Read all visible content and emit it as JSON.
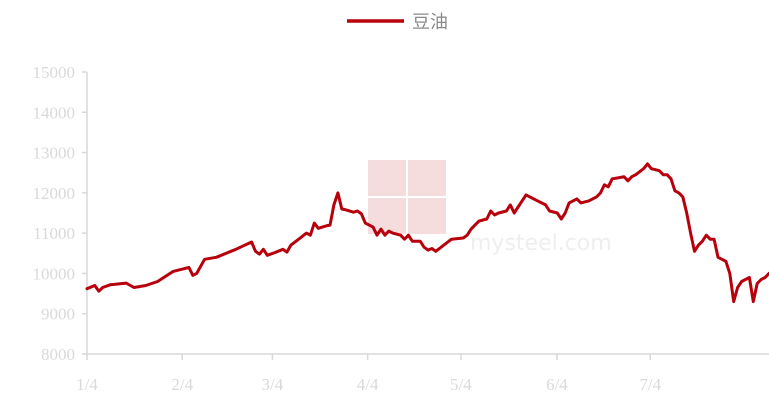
{
  "chart_data": {
    "type": "line",
    "legend_position": "top-center",
    "grid": false,
    "series": [
      {
        "name": "豆油",
        "color": "#b8000c",
        "points": [
          [
            0,
            9620
          ],
          [
            2,
            9700
          ],
          [
            3,
            9560
          ],
          [
            4,
            9650
          ],
          [
            6,
            9720
          ],
          [
            10,
            9760
          ],
          [
            12,
            9650
          ],
          [
            15,
            9700
          ],
          [
            18,
            9800
          ],
          [
            22,
            10050
          ],
          [
            26,
            10150
          ],
          [
            27,
            9950
          ],
          [
            28,
            10000
          ],
          [
            30,
            10350
          ],
          [
            33,
            10400
          ],
          [
            38,
            10600
          ],
          [
            42,
            10780
          ],
          [
            43,
            10550
          ],
          [
            44,
            10480
          ],
          [
            45,
            10600
          ],
          [
            46,
            10450
          ],
          [
            48,
            10520
          ],
          [
            50,
            10600
          ],
          [
            51,
            10530
          ],
          [
            52,
            10700
          ],
          [
            54,
            10850
          ],
          [
            56,
            11000
          ],
          [
            57,
            10950
          ],
          [
            58,
            11250
          ],
          [
            59,
            11120
          ],
          [
            61,
            11180
          ],
          [
            62,
            11200
          ],
          [
            63,
            11700
          ],
          [
            64,
            12000
          ],
          [
            65,
            11600
          ],
          [
            66,
            11580
          ],
          [
            68,
            11520
          ],
          [
            69,
            11550
          ],
          [
            70,
            11480
          ],
          [
            71,
            11250
          ],
          [
            73,
            11150
          ],
          [
            74,
            10950
          ],
          [
            75,
            11100
          ],
          [
            76,
            10950
          ],
          [
            77,
            11050
          ],
          [
            78,
            11000
          ],
          [
            80,
            10950
          ],
          [
            81,
            10850
          ],
          [
            82,
            10950
          ],
          [
            83,
            10800
          ],
          [
            85,
            10800
          ],
          [
            86,
            10650
          ],
          [
            87,
            10580
          ],
          [
            88,
            10620
          ],
          [
            89,
            10550
          ],
          [
            91,
            10700
          ],
          [
            93,
            10850
          ],
          [
            96,
            10880
          ],
          [
            97,
            10950
          ],
          [
            98,
            11100
          ],
          [
            99,
            11200
          ],
          [
            100,
            11300
          ],
          [
            102,
            11350
          ],
          [
            103,
            11550
          ],
          [
            104,
            11450
          ],
          [
            105,
            11500
          ],
          [
            107,
            11550
          ],
          [
            108,
            11700
          ],
          [
            109,
            11500
          ],
          [
            110,
            11650
          ],
          [
            111,
            11800
          ],
          [
            112,
            11950
          ],
          [
            115,
            11800
          ],
          [
            117,
            11700
          ],
          [
            118,
            11550
          ],
          [
            120,
            11500
          ],
          [
            121,
            11350
          ],
          [
            122,
            11500
          ],
          [
            123,
            11750
          ],
          [
            125,
            11850
          ],
          [
            126,
            11750
          ],
          [
            128,
            11800
          ],
          [
            130,
            11900
          ],
          [
            131,
            12000
          ],
          [
            132,
            12200
          ],
          [
            133,
            12150
          ],
          [
            134,
            12350
          ],
          [
            136,
            12380
          ],
          [
            137,
            12400
          ],
          [
            138,
            12300
          ],
          [
            139,
            12400
          ],
          [
            140,
            12450
          ],
          [
            142,
            12600
          ],
          [
            143,
            12720
          ],
          [
            144,
            12600
          ],
          [
            146,
            12550
          ],
          [
            147,
            12450
          ],
          [
            148,
            12450
          ],
          [
            149,
            12350
          ],
          [
            150,
            12050
          ],
          [
            151,
            12000
          ],
          [
            152,
            11900
          ],
          [
            153,
            11500
          ],
          [
            154,
            11000
          ],
          [
            155,
            10550
          ],
          [
            156,
            10700
          ],
          [
            157,
            10800
          ],
          [
            158,
            10950
          ],
          [
            159,
            10850
          ],
          [
            160,
            10850
          ],
          [
            161,
            10400
          ],
          [
            162,
            10350
          ],
          [
            163,
            10300
          ],
          [
            164,
            10000
          ],
          [
            165,
            9300
          ],
          [
            166,
            9650
          ],
          [
            167,
            9800
          ],
          [
            168,
            9850
          ],
          [
            169,
            9900
          ],
          [
            170,
            9300
          ],
          [
            171,
            9750
          ],
          [
            172,
            9850
          ],
          [
            173,
            9900
          ],
          [
            174,
            10000
          ]
        ]
      }
    ],
    "x_tick_labels": [
      "1/4",
      "2/4",
      "3/4",
      "4/4",
      "5/4",
      "6/4",
      "7/4"
    ],
    "x_tick_positions": [
      0,
      24.3,
      47.3,
      71.6,
      95.4,
      119.9,
      143.7
    ],
    "x_range": [
      0,
      174
    ],
    "y_ticks": [
      8000,
      9000,
      10000,
      11000,
      12000,
      13000,
      14000,
      15000
    ],
    "y_range": [
      8000,
      15000
    ]
  },
  "watermark": {
    "text": "mysteel.com",
    "characters": "我的钢铁"
  }
}
